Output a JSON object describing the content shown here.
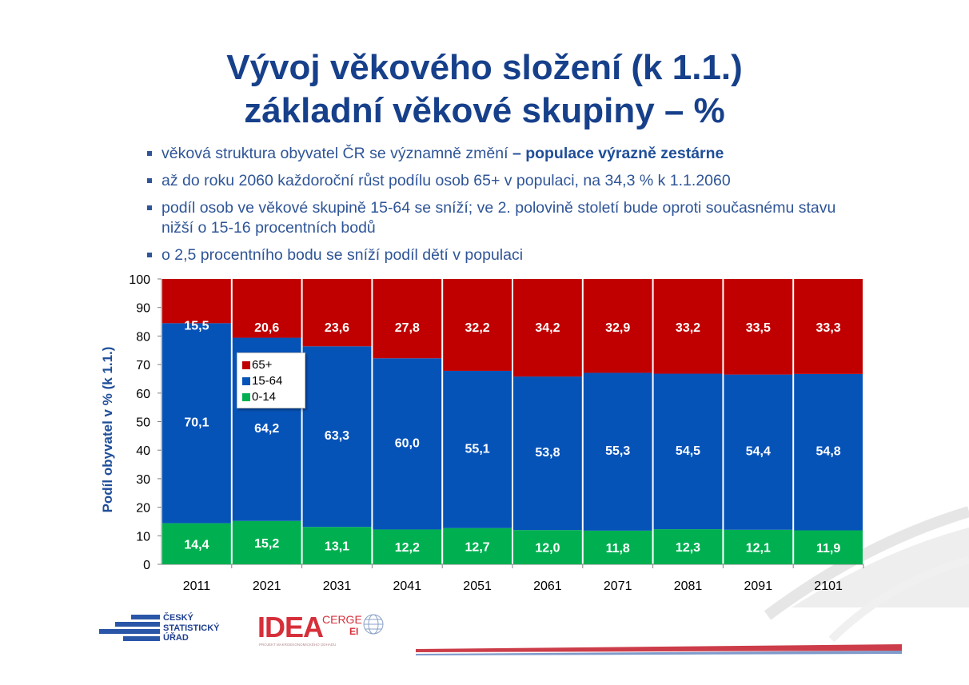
{
  "slide": {
    "title_line1": "Vývoj věkového složení (k 1.1.)",
    "title_line2": "základní věkové skupiny – %",
    "bullets": [
      {
        "text": "věková struktura obyvatel ČR se významně změní ",
        "bold": "– populace výrazně zestárne"
      },
      {
        "text": "až do roku 2060 každoroční růst podílu osob 65+ v populaci, na 34,3 % k 1.1.2060",
        "bold": ""
      },
      {
        "text": "podíl osob ve věkové skupině 15-64 se sníží; ve 2. polovině století bude oproti současnému stavu nižší o 15-16 procentních bodů",
        "bold": ""
      },
      {
        "text": "o 2,5 procentního bodu se sníží podíl dětí v populaci",
        "bold": ""
      }
    ]
  },
  "logos": {
    "csu": [
      "ČESKÝ",
      "STATISTICKÝ",
      "ÚŘAD"
    ],
    "idea_main": "IDEA",
    "idea_cerge": "CERGE",
    "idea_ei": "EI",
    "idea_sub": "PROJEKT MAKROEKONOMICKÉHO ODHADU"
  },
  "chart_data": {
    "type": "bar",
    "stacked": true,
    "categories": [
      "2011",
      "2021",
      "2031",
      "2041",
      "2051",
      "2061",
      "2071",
      "2081",
      "2091",
      "2101"
    ],
    "series": [
      {
        "name": "0-14",
        "color": "#00b050",
        "values": [
          14.4,
          15.2,
          13.1,
          12.2,
          12.7,
          12.0,
          11.8,
          12.3,
          12.1,
          11.9
        ],
        "labels": [
          "14,4",
          "15,2",
          "13,1",
          "12,2",
          "12,7",
          "12,0",
          "11,8",
          "12,3",
          "12,1",
          "11,9"
        ]
      },
      {
        "name": "15-64",
        "color": "#0653b8",
        "values": [
          70.1,
          64.2,
          63.3,
          60.0,
          55.1,
          53.8,
          55.3,
          54.5,
          54.4,
          54.8
        ],
        "labels": [
          "70,1",
          "64,2",
          "63,3",
          "60,0",
          "55,1",
          "53,8",
          "55,3",
          "54,5",
          "54,4",
          "54,8"
        ]
      },
      {
        "name": "65+",
        "color": "#c00000",
        "values": [
          15.5,
          20.6,
          23.6,
          27.8,
          32.2,
          34.2,
          32.9,
          33.2,
          33.5,
          33.3
        ],
        "labels": [
          "15,5",
          "20,6",
          "23,6",
          "27,8",
          "32,2",
          "34,2",
          "32,9",
          "33,2",
          "33,5",
          "33,3"
        ]
      }
    ],
    "legend_order": [
      "65+",
      "15-64",
      "0-14"
    ],
    "ylabel": "Podíl obyvatel v % (k 1.1.)",
    "xlabel": "",
    "ylim": [
      0,
      100
    ],
    "yticks": [
      "0",
      "10",
      "20",
      "30",
      "40",
      "50",
      "60",
      "70",
      "80",
      "90",
      "100"
    ],
    "legend_position": "inside-left"
  }
}
